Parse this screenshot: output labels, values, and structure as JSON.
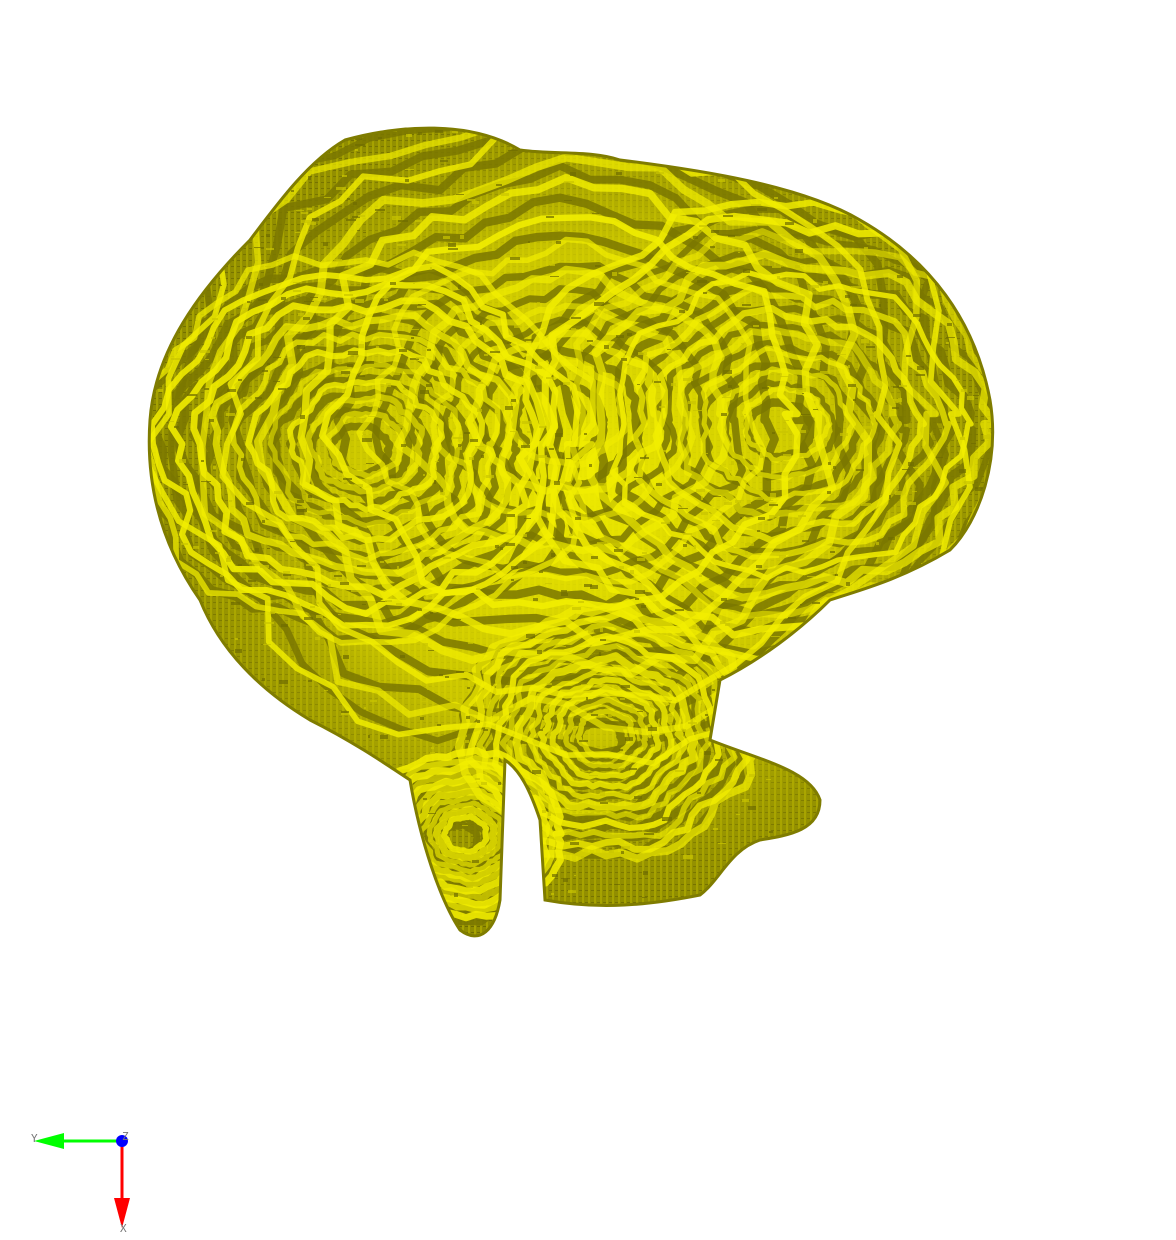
{
  "scene": {
    "background_color": "#ffffff",
    "surface": {
      "icon": "brain-surface-mesh",
      "base_color": "#8f8c00",
      "highlight_color": "#f2ee00",
      "mid_color": "#c9c400",
      "shadow_color": "#6f6c00"
    }
  },
  "orientation_axes": {
    "y_axis": {
      "label": "Y",
      "color": "#00ff00"
    },
    "x_axis": {
      "label": "X",
      "color": "#ff0000"
    },
    "z_axis": {
      "label": "Z",
      "color": "#0000ff"
    }
  }
}
